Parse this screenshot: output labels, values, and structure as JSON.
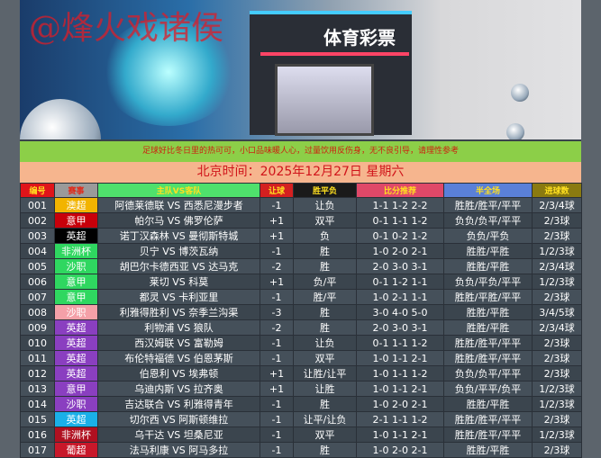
{
  "banner": {
    "watermark": "@烽火戏诸侯",
    "store_sign": "体育彩票"
  },
  "notice": "足球好比冬日里的热可可，小口品味暖人心，过量饮用反伤身，无不良引导，请理性参考",
  "date_line": "北京时间：2025年12月27日  星期六",
  "headers": [
    {
      "label": "编号",
      "bg": "#e0141a",
      "color": "#ffe020"
    },
    {
      "label": "赛事",
      "bg": "#9a9a9a",
      "color": "#e02a1a"
    },
    {
      "label": "主队VS客队",
      "bg": "#4fe06c",
      "color": "#ffe020"
    },
    {
      "label": "让球",
      "bg": "#d42020",
      "color": "#ffe020"
    },
    {
      "label": "胜平负",
      "bg": "#1a1a1a",
      "color": "#ffe020"
    },
    {
      "label": "比分推荐",
      "bg": "#e04868",
      "color": "#ffe020"
    },
    {
      "label": "半全场",
      "bg": "#5a80d8",
      "color": "#ffe020"
    },
    {
      "label": "进球数",
      "bg": "#8a7a10",
      "color": "#ffe020"
    }
  ],
  "rows": [
    {
      "no": "001",
      "league": "澳超",
      "league_color": "#f2b400",
      "match": "阿德莱德联 VS 西悉尼漫步者",
      "handicap": "-1",
      "result": "让负",
      "score": "1-1 1-2 2-2",
      "half_full": "胜胜/胜平/平平",
      "goals": "2/3/4球"
    },
    {
      "no": "002",
      "league": "意甲",
      "league_color": "#c8000a",
      "match": "帕尔马 VS 佛罗伦萨",
      "handicap": "+1",
      "result": "双平",
      "score": "0-1 1-1 1-2",
      "half_full": "负负/负平/平平",
      "goals": "2/3球"
    },
    {
      "no": "003",
      "league": "英超",
      "league_color": "#000000",
      "match": "诺丁汉森林 VS 曼彻斯特城",
      "handicap": "+1",
      "result": "负",
      "score": "0-1 0-2 1-2",
      "half_full": "负负/平负",
      "goals": "2/3球"
    },
    {
      "no": "004",
      "league": "非洲杯",
      "league_color": "#2fd760",
      "match": "贝宁 VS 博茨瓦纳",
      "handicap": "-1",
      "result": "胜",
      "score": "1-0 2-0 2-1",
      "half_full": "胜胜/平胜",
      "goals": "1/2/3球"
    },
    {
      "no": "005",
      "league": "沙职",
      "league_color": "#2fd760",
      "match": "胡巴尔卡德西亚 VS 达马克",
      "handicap": "-2",
      "result": "胜",
      "score": "2-0 3-0 3-1",
      "half_full": "胜胜/平胜",
      "goals": "2/3/4球"
    },
    {
      "no": "006",
      "league": "意甲",
      "league_color": "#2fd760",
      "match": "莱切 VS 科莫",
      "handicap": "+1",
      "result": "负/平",
      "score": "0-1 1-2 1-1",
      "half_full": "负负/平负/平平",
      "goals": "1/2/3球"
    },
    {
      "no": "007",
      "league": "意甲",
      "league_color": "#2fd760",
      "match": "都灵 VS 卡利亚里",
      "handicap": "-1",
      "result": "胜/平",
      "score": "1-0 2-1 1-1",
      "half_full": "胜胜/平胜/平平",
      "goals": "2/3球"
    },
    {
      "no": "008",
      "league": "沙职",
      "league_color": "#f4a0a8",
      "match": "利雅得胜利 VS 奈季兰沟渠",
      "handicap": "-3",
      "result": "胜",
      "score": "3-0 4-0 5-0",
      "half_full": "胜胜/平胜",
      "goals": "3/4/5球"
    },
    {
      "no": "009",
      "league": "英超",
      "league_color": "#8a3fc0",
      "match": "利物浦 VS 狼队",
      "handicap": "-2",
      "result": "胜",
      "score": "2-0 3-0 3-1",
      "half_full": "胜胜/平胜",
      "goals": "2/3/4球"
    },
    {
      "no": "010",
      "league": "英超",
      "league_color": "#8a3fc0",
      "match": "西汉姆联 VS 富勒姆",
      "handicap": "-1",
      "result": "让负",
      "score": "0-1 1-1 1-2",
      "half_full": "胜胜/胜平/平平",
      "goals": "2/3球"
    },
    {
      "no": "011",
      "league": "英超",
      "league_color": "#8a3fc0",
      "match": "布伦特福德 VS 伯恩茅斯",
      "handicap": "-1",
      "result": "双平",
      "score": "1-0 1-1 2-1",
      "half_full": "胜胜/胜平/平平",
      "goals": "2/3球"
    },
    {
      "no": "012",
      "league": "英超",
      "league_color": "#8a3fc0",
      "match": "伯恩利 VS 埃弗顿",
      "handicap": "+1",
      "result": "让胜/让平",
      "score": "1-0 1-1 1-2",
      "half_full": "负负/负平/平平",
      "goals": "2/3球"
    },
    {
      "no": "013",
      "league": "意甲",
      "league_color": "#8a3fc0",
      "match": "乌迪内斯 VS 拉齐奥",
      "handicap": "+1",
      "result": "让胜",
      "score": "1-0 1-1 2-1",
      "half_full": "负负/平平/负平",
      "goals": "1/2/3球"
    },
    {
      "no": "014",
      "league": "沙职",
      "league_color": "#8a3fc0",
      "match": "吉达联合 VS 利雅得青年",
      "handicap": "-1",
      "result": "胜",
      "score": "1-0 2-0 2-1",
      "half_full": "胜胜/平胜",
      "goals": "1/2/3球"
    },
    {
      "no": "015",
      "league": "英超",
      "league_color": "#1ab0e8",
      "match": "切尔西 VS 阿斯顿维拉",
      "handicap": "-1",
      "result": "让平/让负",
      "score": "2-1 1-1 1-2",
      "half_full": "胜胜/胜平/平平",
      "goals": "2/3球"
    },
    {
      "no": "016",
      "league": "非洲杯",
      "league_color": "#b01020",
      "match": "乌干达 VS 坦桑尼亚",
      "handicap": "-1",
      "result": "双平",
      "score": "1-0 1-1 2-1",
      "half_full": "胜胜/胜平/平平",
      "goals": "1/2/3球"
    },
    {
      "no": "017",
      "league": "葡超",
      "league_color": "#c8182a",
      "match": "法马利康 VS 阿马多拉",
      "handicap": "-1",
      "result": "胜",
      "score": "1-0 2-0 2-1",
      "half_full": "胜胜/平胜",
      "goals": "2/3球"
    }
  ]
}
